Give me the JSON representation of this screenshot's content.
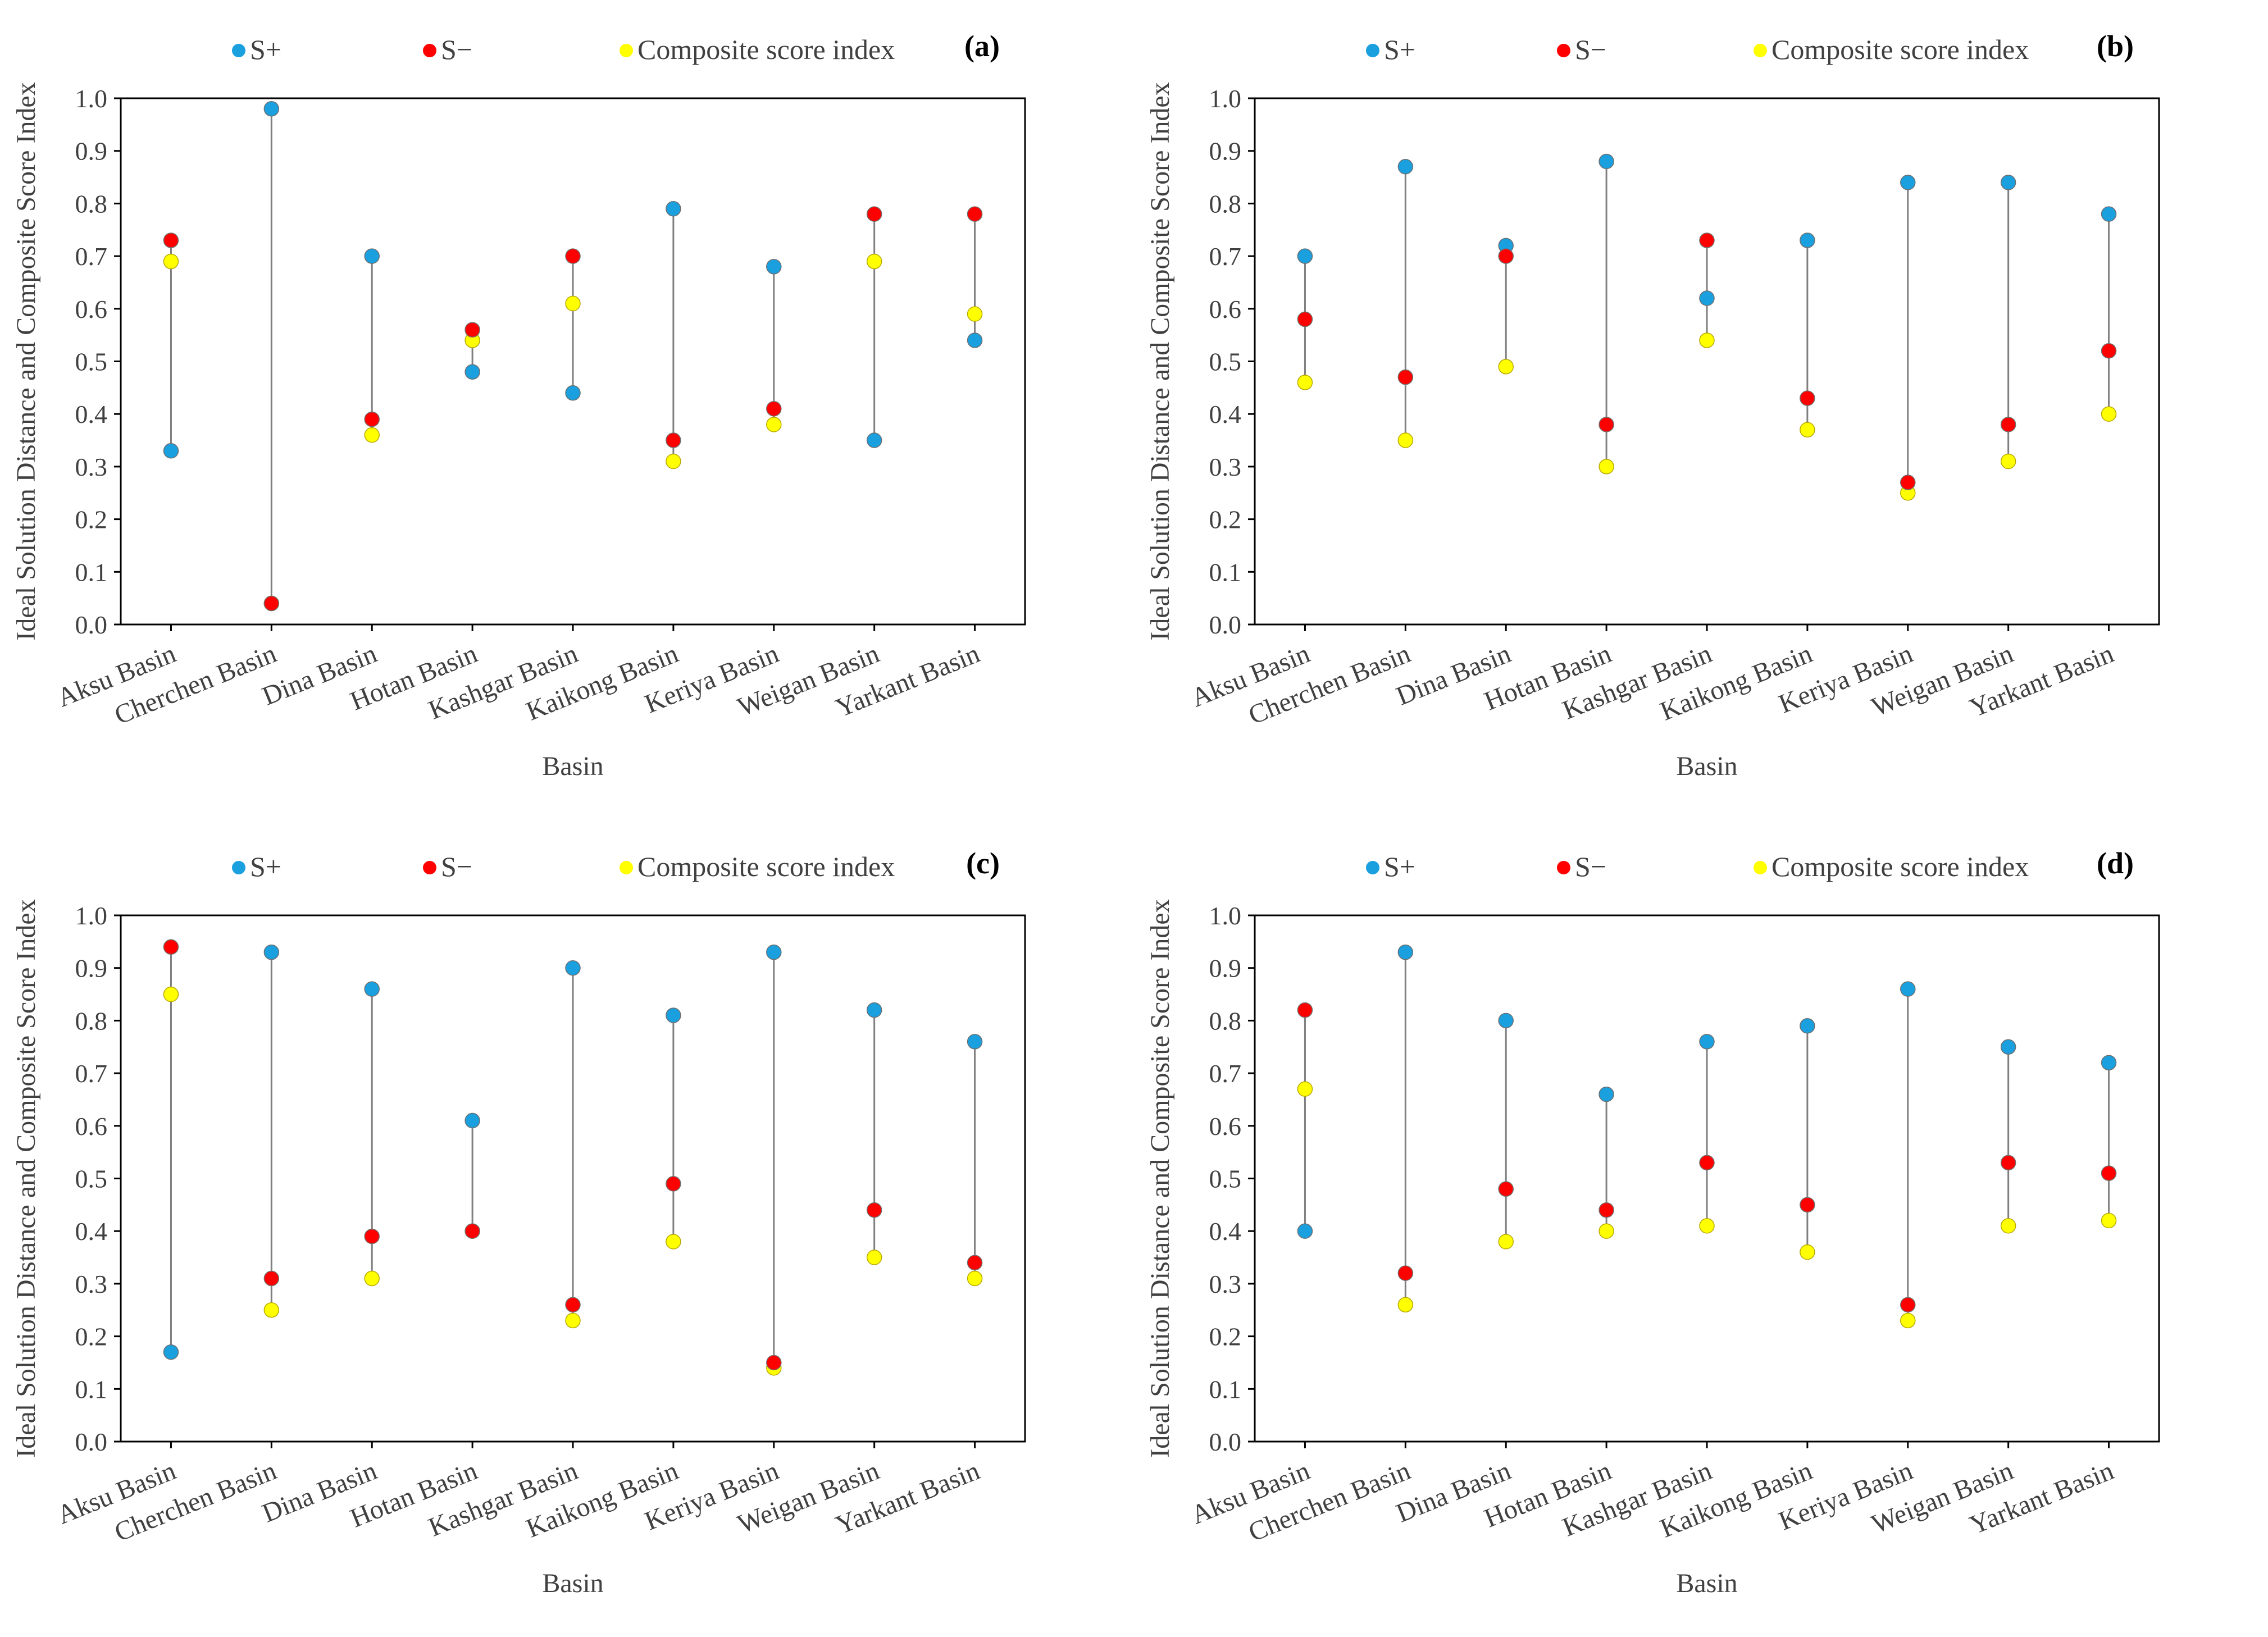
{
  "chart_data": [
    {
      "type": "scatter",
      "panel_label": "(a)",
      "title": "",
      "xlabel": "Basin",
      "ylabel": "Ideal Solution Distance and Composite Score Index",
      "ylim": [
        0,
        1
      ],
      "yticks": [
        "0.0",
        "0.1",
        "0.2",
        "0.3",
        "0.4",
        "0.5",
        "0.6",
        "0.7",
        "0.8",
        "0.9",
        "1.0"
      ],
      "categories": [
        "Aksu Basin",
        "Cherchen Basin",
        "Dina Basin",
        "Hotan Basin",
        "Kashgar Basin",
        "Kaikong Basin",
        "Keriya Basin",
        "Weigan Basin",
        "Yarkant Basin"
      ],
      "legend_position": "top",
      "grid": false,
      "series": [
        {
          "name": "S+",
          "color": "#1a9fdf",
          "values": [
            0.33,
            0.98,
            0.7,
            0.48,
            0.44,
            0.79,
            0.68,
            0.35,
            0.54
          ]
        },
        {
          "name": "S−",
          "color": "#ff0000",
          "values": [
            0.73,
            0.04,
            0.39,
            0.56,
            0.7,
            0.35,
            0.41,
            0.78,
            0.78
          ]
        },
        {
          "name": "Composite score index",
          "color": "#ffff00",
          "values": [
            0.69,
            0.04,
            0.36,
            0.54,
            0.61,
            0.31,
            0.38,
            0.69,
            0.59
          ]
        }
      ]
    },
    {
      "type": "scatter",
      "panel_label": "(b)",
      "title": "",
      "xlabel": "Basin",
      "ylabel": "Ideal Solution Distance and Composite Score Index",
      "ylim": [
        0,
        1
      ],
      "yticks": [
        "0.0",
        "0.1",
        "0.2",
        "0.3",
        "0.4",
        "0.5",
        "0.6",
        "0.7",
        "0.8",
        "0.9",
        "1.0"
      ],
      "categories": [
        "Aksu Basin",
        "Cherchen Basin",
        "Dina Basin",
        "Hotan Basin",
        "Kashgar Basin",
        "Kaikong Basin",
        "Keriya Basin",
        "Weigan Basin",
        "Yarkant Basin"
      ],
      "legend_position": "top",
      "grid": false,
      "series": [
        {
          "name": "S+",
          "color": "#1a9fdf",
          "values": [
            0.7,
            0.87,
            0.72,
            0.88,
            0.62,
            0.73,
            0.84,
            0.84,
            0.78
          ]
        },
        {
          "name": "S−",
          "color": "#ff0000",
          "values": [
            0.58,
            0.47,
            0.7,
            0.38,
            0.73,
            0.43,
            0.27,
            0.38,
            0.52
          ]
        },
        {
          "name": "Composite score index",
          "color": "#ffff00",
          "values": [
            0.46,
            0.35,
            0.49,
            0.3,
            0.54,
            0.37,
            0.25,
            0.31,
            0.4
          ]
        }
      ]
    },
    {
      "type": "scatter",
      "panel_label": "(c)",
      "title": "",
      "xlabel": "Basin",
      "ylabel": "Ideal Solution Distance and Composite Score Index",
      "ylim": [
        0,
        1
      ],
      "yticks": [
        "0.0",
        "0.1",
        "0.2",
        "0.3",
        "0.4",
        "0.5",
        "0.6",
        "0.7",
        "0.8",
        "0.9",
        "1.0"
      ],
      "categories": [
        "Aksu Basin",
        "Cherchen Basin",
        "Dina Basin",
        "Hotan Basin",
        "Kashgar Basin",
        "Kaikong Basin",
        "Keriya Basin",
        "Weigan Basin",
        "Yarkant Basin"
      ],
      "legend_position": "top",
      "grid": false,
      "series": [
        {
          "name": "S+",
          "color": "#1a9fdf",
          "values": [
            0.17,
            0.93,
            0.86,
            0.61,
            0.9,
            0.81,
            0.93,
            0.82,
            0.76
          ]
        },
        {
          "name": "S−",
          "color": "#ff0000",
          "values": [
            0.94,
            0.31,
            0.39,
            0.4,
            0.26,
            0.49,
            0.15,
            0.44,
            0.34
          ]
        },
        {
          "name": "Composite score index",
          "color": "#ffff00",
          "values": [
            0.85,
            0.25,
            0.31,
            0.4,
            0.23,
            0.38,
            0.14,
            0.35,
            0.31
          ]
        }
      ]
    },
    {
      "type": "scatter",
      "panel_label": "(d)",
      "title": "",
      "xlabel": "Basin",
      "ylabel": "Ideal Solution Distance and Composite Score Index",
      "ylim": [
        0,
        1
      ],
      "yticks": [
        "0.0",
        "0.1",
        "0.2",
        "0.3",
        "0.4",
        "0.5",
        "0.6",
        "0.7",
        "0.8",
        "0.9",
        "1.0"
      ],
      "categories": [
        "Aksu Basin",
        "Cherchen Basin",
        "Dina Basin",
        "Hotan Basin",
        "Kashgar Basin",
        "Kaikong Basin",
        "Keriya Basin",
        "Weigan Basin",
        "Yarkant Basin"
      ],
      "legend_position": "top",
      "grid": false,
      "series": [
        {
          "name": "S+",
          "color": "#1a9fdf",
          "values": [
            0.4,
            0.93,
            0.8,
            0.66,
            0.76,
            0.79,
            0.86,
            0.75,
            0.72
          ]
        },
        {
          "name": "S−",
          "color": "#ff0000",
          "values": [
            0.82,
            0.32,
            0.48,
            0.44,
            0.53,
            0.45,
            0.26,
            0.53,
            0.51
          ]
        },
        {
          "name": "Composite score index",
          "color": "#ffff00",
          "values": [
            0.67,
            0.26,
            0.38,
            0.4,
            0.41,
            0.36,
            0.23,
            0.41,
            0.42
          ]
        }
      ]
    }
  ]
}
